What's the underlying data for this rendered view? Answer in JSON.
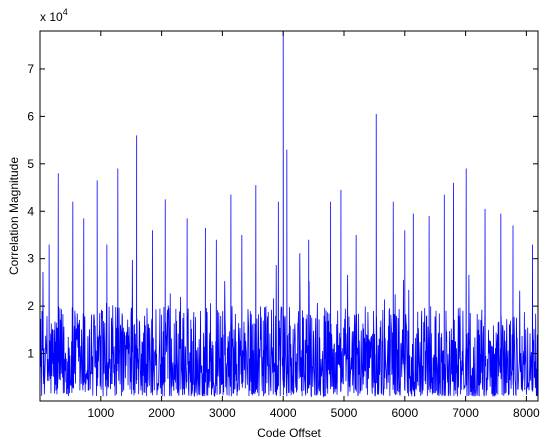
{
  "chart_data": {
    "type": "line",
    "title": "",
    "xlabel": "Code Offset",
    "ylabel": "Correlation Magnitude",
    "y_scale_factor_label": "x 10^4",
    "y_scale_base": "x 10",
    "y_scale_exponent": "4",
    "xlim": [
      0,
      8191
    ],
    "ylim": [
      0,
      7.8
    ],
    "xticks": [
      1000,
      2000,
      3000,
      4000,
      5000,
      6000,
      7000,
      8000
    ],
    "xtick_labels": [
      "1000",
      "2000",
      "3000",
      "4000",
      "5000",
      "6000",
      "7000",
      "8000"
    ],
    "yticks": [
      1,
      2,
      3,
      4,
      5,
      6,
      7
    ],
    "ytick_labels": [
      "1",
      "2",
      "3",
      "4",
      "5",
      "6",
      "7"
    ],
    "grid": false,
    "line_color": "#0000ff",
    "series": [
      {
        "name": "",
        "baseline_range": [
          0.1,
          2.0
        ],
        "noise_seed": 12345,
        "sample_count": 1500,
        "peaks": [
          {
            "x": 4000,
            "y": 7.8
          },
          {
            "x": 5530,
            "y": 6.05
          },
          {
            "x": 1590,
            "y": 5.6
          },
          {
            "x": 4060,
            "y": 5.3
          },
          {
            "x": 7010,
            "y": 4.9
          },
          {
            "x": 1280,
            "y": 4.9
          },
          {
            "x": 300,
            "y": 4.8
          },
          {
            "x": 4950,
            "y": 4.45
          },
          {
            "x": 940,
            "y": 4.65
          },
          {
            "x": 3550,
            "y": 4.55
          },
          {
            "x": 6800,
            "y": 4.6
          },
          {
            "x": 3140,
            "y": 4.35
          },
          {
            "x": 6650,
            "y": 4.35
          },
          {
            "x": 2060,
            "y": 4.25
          },
          {
            "x": 540,
            "y": 4.2
          },
          {
            "x": 3920,
            "y": 4.2
          },
          {
            "x": 4780,
            "y": 4.2
          },
          {
            "x": 5810,
            "y": 4.2
          },
          {
            "x": 6140,
            "y": 3.95
          },
          {
            "x": 7320,
            "y": 4.05
          },
          {
            "x": 7580,
            "y": 3.95
          },
          {
            "x": 720,
            "y": 3.85
          },
          {
            "x": 2420,
            "y": 3.85
          },
          {
            "x": 6400,
            "y": 3.9
          },
          {
            "x": 1850,
            "y": 3.6
          },
          {
            "x": 2720,
            "y": 3.65
          },
          {
            "x": 3320,
            "y": 3.5
          },
          {
            "x": 5200,
            "y": 3.5
          },
          {
            "x": 7780,
            "y": 3.7
          },
          {
            "x": 4420,
            "y": 3.4
          },
          {
            "x": 6000,
            "y": 3.6
          },
          {
            "x": 8100,
            "y": 3.3
          },
          {
            "x": 150,
            "y": 3.3
          },
          {
            "x": 1100,
            "y": 3.3
          },
          {
            "x": 2900,
            "y": 3.4
          }
        ]
      }
    ]
  }
}
